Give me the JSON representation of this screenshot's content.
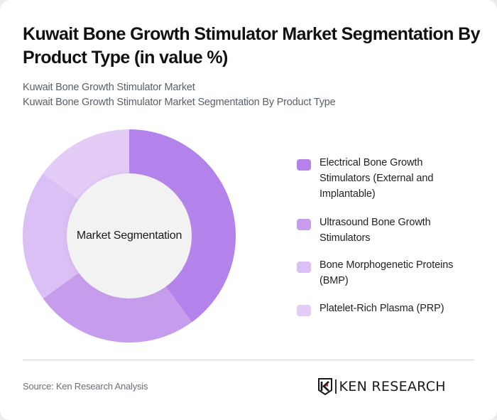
{
  "header": {
    "title": "Kuwait Bone Growth Stimulator Market Segmentation By Product Type (in value %)",
    "subtitle_line1": "Kuwait Bone Growth Stimulator Market",
    "subtitle_line2": "Kuwait Bone Growth Stimulator Market Segmentation By Product Type"
  },
  "chart": {
    "center_label": "Market Segmentation"
  },
  "legend": {
    "items": [
      {
        "label": "Electrical Bone Growth Stimulators (External and Implantable)",
        "color": "#B382EA"
      },
      {
        "label": "Ultrasound Bone Growth Stimulators",
        "color": "#C69DEC"
      },
      {
        "label": "Bone Morphogenetic Proteins (BMP)",
        "color": "#DBC0F5"
      },
      {
        "label": "Platelet-Rich Plasma (PRP)",
        "color": "#E3CDF7"
      }
    ]
  },
  "footer": {
    "source": "Source: Ken Research Analysis",
    "logo_text": "KEN RESEARCH",
    "logo_accent": "#d0202a"
  },
  "chart_data": {
    "type": "pie",
    "subtype": "donut",
    "title": "Kuwait Bone Growth Stimulator Market Segmentation By Product Type (in value %)",
    "center_label": "Market Segmentation",
    "categories": [
      "Electrical Bone Growth Stimulators (External and Implantable)",
      "Ultrasound Bone Growth Stimulators",
      "Bone Morphogenetic Proteins (BMP)",
      "Platelet-Rich Plasma (PRP)"
    ],
    "values": [
      40,
      25,
      20,
      15
    ],
    "unit": "%",
    "colors": [
      "#B382EA",
      "#C69DEC",
      "#DBC0F5",
      "#E3CDF7"
    ],
    "start_angle": "12 o'clock, clockwise",
    "legend_position": "right"
  }
}
